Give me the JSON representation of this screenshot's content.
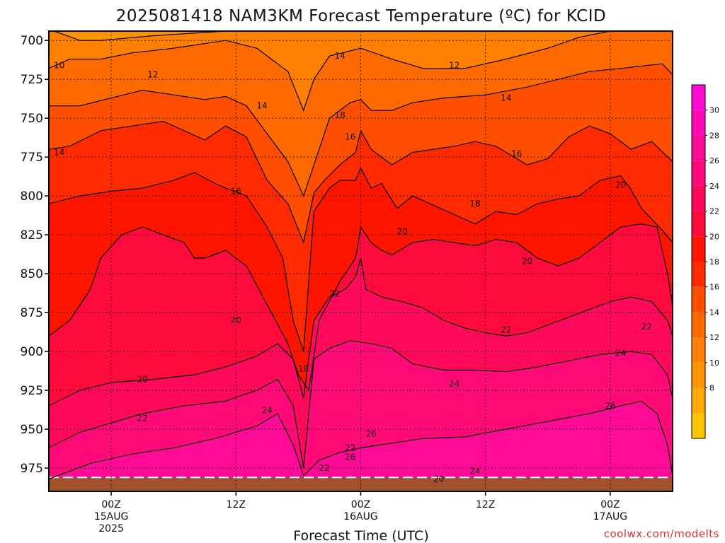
{
  "title": "2025081418 NAM3KM Forecast Temperature (ºC) for KCID",
  "credit": "coolwx.com/modelts",
  "colors": {
    "bands": [
      "#ffc400",
      "#ffa800",
      "#ff9400",
      "#ff7f00",
      "#ff6a00",
      "#ff4e00",
      "#ff2a00",
      "#ff1400",
      "#ff0a3c",
      "#ff0a5a",
      "#ff0a78",
      "#ff0a96",
      "#ff0ab4",
      "#ff0ad2"
    ],
    "ground": "#a0522d",
    "contour": "#000000"
  },
  "chart_data": {
    "type": "heatmap",
    "title": "2025081418 NAM3KM Forecast Temperature (ºC) for KCID",
    "xlabel": "Forecast Time (UTC)",
    "ylabel": "",
    "y_reversed": true,
    "ylim": [
      990,
      694
    ],
    "xlim_hours_from_init": [
      0,
      60
    ],
    "y_ticks": [
      700,
      725,
      750,
      775,
      800,
      825,
      850,
      875,
      900,
      925,
      950,
      975
    ],
    "x_ticks": [
      {
        "hour": 6,
        "lines": [
          "00Z",
          "15AUG",
          "2025"
        ]
      },
      {
        "hour": 18,
        "lines": [
          "12Z"
        ]
      },
      {
        "hour": 30,
        "lines": [
          "00Z",
          "16AUG"
        ]
      },
      {
        "hour": 42,
        "lines": [
          "12Z"
        ]
      },
      {
        "hour": 54,
        "lines": [
          "00Z",
          "17AUG"
        ]
      }
    ],
    "colorbar": {
      "levels": [
        4,
        6,
        8,
        10,
        12,
        14,
        16,
        18,
        20,
        22,
        24,
        26,
        28,
        30,
        32
      ],
      "labels": [
        8,
        10,
        12,
        14,
        16,
        18,
        20,
        22,
        24,
        26,
        28,
        30
      ]
    },
    "contours": [
      {
        "value": 10,
        "points": [
          [
            0.5,
            694
          ],
          [
            3,
            700
          ],
          [
            5,
            700
          ],
          [
            10,
            697
          ],
          [
            17,
            694
          ]
        ]
      },
      {
        "value": 12,
        "points": [
          [
            0,
            718
          ],
          [
            2,
            712
          ],
          [
            5,
            712
          ],
          [
            8,
            708
          ],
          [
            12,
            705
          ],
          [
            17,
            700
          ],
          [
            20,
            705
          ],
          [
            23,
            720
          ],
          [
            24.5,
            745
          ],
          [
            25.5,
            725
          ],
          [
            27,
            710
          ],
          [
            30,
            705
          ],
          [
            33,
            712
          ],
          [
            36,
            718
          ],
          [
            40,
            718
          ],
          [
            44,
            712
          ],
          [
            48,
            705
          ],
          [
            51,
            698
          ],
          [
            54,
            694
          ]
        ]
      },
      {
        "value": 14,
        "points": [
          [
            0,
            742
          ],
          [
            3,
            742
          ],
          [
            6,
            737
          ],
          [
            9,
            732
          ],
          [
            12,
            735
          ],
          [
            15,
            738
          ],
          [
            17,
            736
          ],
          [
            19,
            742
          ],
          [
            21,
            760
          ],
          [
            23,
            778
          ],
          [
            24.5,
            800
          ],
          [
            26,
            770
          ],
          [
            27,
            750
          ],
          [
            29,
            740
          ],
          [
            30,
            738
          ],
          [
            31,
            745
          ],
          [
            33,
            745
          ],
          [
            35,
            740
          ],
          [
            38,
            737
          ],
          [
            42,
            735
          ],
          [
            46,
            730
          ],
          [
            49,
            725
          ],
          [
            52,
            720
          ],
          [
            55,
            718
          ],
          [
            59,
            715
          ],
          [
            60,
            722
          ]
        ]
      },
      {
        "value": 16,
        "points": [
          [
            0,
            770
          ],
          [
            2,
            768
          ],
          [
            5,
            758
          ],
          [
            8,
            755
          ],
          [
            11,
            752
          ],
          [
            13,
            758
          ],
          [
            15,
            764
          ],
          [
            17,
            755
          ],
          [
            19,
            762
          ],
          [
            21,
            790
          ],
          [
            23,
            805
          ],
          [
            24.5,
            830
          ],
          [
            25.5,
            798
          ],
          [
            26.5,
            790
          ],
          [
            28,
            780
          ],
          [
            29.5,
            772
          ],
          [
            30,
            758
          ],
          [
            31,
            770
          ],
          [
            33,
            780
          ],
          [
            35,
            772
          ],
          [
            37,
            770
          ],
          [
            39,
            768
          ],
          [
            41,
            765
          ],
          [
            43,
            768
          ],
          [
            46,
            780
          ],
          [
            48,
            776
          ],
          [
            50,
            762
          ],
          [
            52,
            755
          ],
          [
            54,
            760
          ],
          [
            56,
            770
          ],
          [
            58,
            765
          ],
          [
            60,
            778
          ]
        ]
      },
      {
        "value": 18,
        "points": [
          [
            0,
            805
          ],
          [
            3,
            800
          ],
          [
            6,
            797
          ],
          [
            9,
            795
          ],
          [
            12,
            790
          ],
          [
            14,
            785
          ],
          [
            16,
            792
          ],
          [
            17,
            795
          ],
          [
            19,
            800
          ],
          [
            21,
            820
          ],
          [
            22.5,
            840
          ],
          [
            23.5,
            880
          ],
          [
            24.5,
            900
          ],
          [
            25.5,
            810
          ],
          [
            27,
            795
          ],
          [
            28,
            790
          ],
          [
            29.5,
            790
          ],
          [
            30,
            782
          ],
          [
            31,
            795
          ],
          [
            32,
            792
          ],
          [
            33.5,
            808
          ],
          [
            35,
            800
          ],
          [
            37,
            806
          ],
          [
            39,
            812
          ],
          [
            41,
            818
          ],
          [
            43,
            810
          ],
          [
            45,
            812
          ],
          [
            47,
            805
          ],
          [
            49,
            802
          ],
          [
            51,
            800
          ],
          [
            53,
            790
          ],
          [
            55,
            787
          ],
          [
            56,
            796
          ],
          [
            57,
            808
          ],
          [
            58,
            815
          ],
          [
            59,
            822
          ],
          [
            60,
            830
          ]
        ]
      },
      {
        "value": 20,
        "points": [
          [
            0,
            890
          ],
          [
            2,
            880
          ],
          [
            4,
            860
          ],
          [
            5,
            840
          ],
          [
            7,
            825
          ],
          [
            9,
            820
          ],
          [
            11,
            825
          ],
          [
            13,
            830
          ],
          [
            14,
            840
          ],
          [
            15,
            840
          ],
          [
            17,
            835
          ],
          [
            19,
            845
          ],
          [
            21,
            870
          ],
          [
            23,
            895
          ],
          [
            24,
            915
          ],
          [
            25,
            925
          ],
          [
            26,
            880
          ],
          [
            28,
            855
          ],
          [
            29.5,
            840
          ],
          [
            30,
            820
          ],
          [
            31,
            830
          ],
          [
            32,
            835
          ],
          [
            33,
            838
          ],
          [
            35,
            830
          ],
          [
            37,
            828
          ],
          [
            39,
            830
          ],
          [
            41,
            832
          ],
          [
            43,
            828
          ],
          [
            45,
            830
          ],
          [
            47,
            840
          ],
          [
            49,
            845
          ],
          [
            51,
            840
          ],
          [
            53,
            830
          ],
          [
            55,
            820
          ],
          [
            57,
            818
          ],
          [
            58.5,
            820
          ],
          [
            59.5,
            850
          ],
          [
            60,
            870
          ]
        ]
      },
      {
        "value": 22,
        "points": [
          [
            0,
            935
          ],
          [
            3,
            925
          ],
          [
            6,
            920
          ],
          [
            10,
            918
          ],
          [
            14,
            915
          ],
          [
            17,
            910
          ],
          [
            20,
            903
          ],
          [
            22,
            895
          ],
          [
            23.5,
            905
          ],
          [
            24.5,
            930
          ],
          [
            25.5,
            880
          ],
          [
            27,
            865
          ],
          [
            28.5,
            860
          ],
          [
            29.5,
            852
          ],
          [
            30,
            840
          ],
          [
            30.5,
            860
          ],
          [
            32,
            865
          ],
          [
            34,
            868
          ],
          [
            36,
            872
          ],
          [
            38,
            880
          ],
          [
            40,
            885
          ],
          [
            42,
            888
          ],
          [
            44,
            890
          ],
          [
            46,
            888
          ],
          [
            48,
            883
          ],
          [
            50,
            878
          ],
          [
            52,
            873
          ],
          [
            54,
            868
          ],
          [
            56,
            865
          ],
          [
            58,
            868
          ],
          [
            59.5,
            880
          ],
          [
            60,
            890
          ]
        ]
      },
      {
        "value": 24,
        "points": [
          [
            0,
            962
          ],
          [
            3,
            952
          ],
          [
            6,
            946
          ],
          [
            9,
            940
          ],
          [
            13,
            935
          ],
          [
            17,
            932
          ],
          [
            20,
            925
          ],
          [
            22,
            918
          ],
          [
            23.5,
            935
          ],
          [
            24.5,
            975
          ],
          [
            25.5,
            905
          ],
          [
            27,
            898
          ],
          [
            29,
            893
          ],
          [
            31,
            895
          ],
          [
            33,
            898
          ],
          [
            35,
            908
          ],
          [
            38,
            912
          ],
          [
            41,
            912
          ],
          [
            44,
            913
          ],
          [
            47,
            910
          ],
          [
            50,
            906
          ],
          [
            53,
            902
          ],
          [
            56,
            900
          ],
          [
            58,
            902
          ],
          [
            59.5,
            915
          ],
          [
            60,
            930
          ]
        ]
      },
      {
        "value": 26,
        "points": [
          [
            0,
            982
          ],
          [
            4,
            972
          ],
          [
            8,
            966
          ],
          [
            12,
            962
          ],
          [
            16,
            956
          ],
          [
            20,
            948
          ],
          [
            22,
            940
          ],
          [
            23.5,
            960
          ],
          [
            24.5,
            980
          ],
          [
            26,
            970
          ],
          [
            28,
            965
          ],
          [
            30,
            962
          ],
          [
            32,
            960
          ],
          [
            34,
            958
          ],
          [
            36,
            956
          ],
          [
            40,
            955
          ],
          [
            44,
            950
          ],
          [
            48,
            945
          ],
          [
            52,
            940
          ],
          [
            55,
            935
          ],
          [
            57,
            932
          ],
          [
            58.5,
            940
          ],
          [
            59.5,
            960
          ],
          [
            60,
            980
          ]
        ]
      }
    ],
    "contour_labels": [
      {
        "text": "10",
        "x": 1,
        "y": 716
      },
      {
        "text": "12",
        "x": 10,
        "y": 722
      },
      {
        "text": "12",
        "x": 39,
        "y": 716
      },
      {
        "text": "14",
        "x": 28,
        "y": 710
      },
      {
        "text": "14",
        "x": 20.5,
        "y": 742
      },
      {
        "text": "14",
        "x": 44,
        "y": 737
      },
      {
        "text": "14",
        "x": 1,
        "y": 772
      },
      {
        "text": "18",
        "x": 28,
        "y": 748
      },
      {
        "text": "16",
        "x": 29,
        "y": 762
      },
      {
        "text": "16",
        "x": 45,
        "y": 773
      },
      {
        "text": "16",
        "x": 18,
        "y": 797
      },
      {
        "text": "20",
        "x": 55,
        "y": 793
      },
      {
        "text": "18",
        "x": 41,
        "y": 805
      },
      {
        "text": "20",
        "x": 34,
        "y": 823
      },
      {
        "text": "20",
        "x": 46,
        "y": 842
      },
      {
        "text": "22",
        "x": 27.5,
        "y": 863
      },
      {
        "text": "20",
        "x": 18,
        "y": 880
      },
      {
        "text": "22",
        "x": 44,
        "y": 886
      },
      {
        "text": "22",
        "x": 57.5,
        "y": 884
      },
      {
        "text": "18",
        "x": 24.5,
        "y": 911
      },
      {
        "text": "24",
        "x": 55,
        "y": 901
      },
      {
        "text": "20",
        "x": 9,
        "y": 918
      },
      {
        "text": "24",
        "x": 39,
        "y": 921
      },
      {
        "text": "24",
        "x": 21,
        "y": 938
      },
      {
        "text": "26",
        "x": 54,
        "y": 935
      },
      {
        "text": "22",
        "x": 9,
        "y": 943
      },
      {
        "text": "26",
        "x": 31,
        "y": 953
      },
      {
        "text": "22",
        "x": 29,
        "y": 962
      },
      {
        "text": "26",
        "x": 29,
        "y": 968
      },
      {
        "text": "22",
        "x": 26.5,
        "y": 975
      },
      {
        "text": "24",
        "x": 41,
        "y": 977
      },
      {
        "text": "20",
        "x": 37.5,
        "y": 982
      }
    ],
    "ground_pressure": 981
  }
}
